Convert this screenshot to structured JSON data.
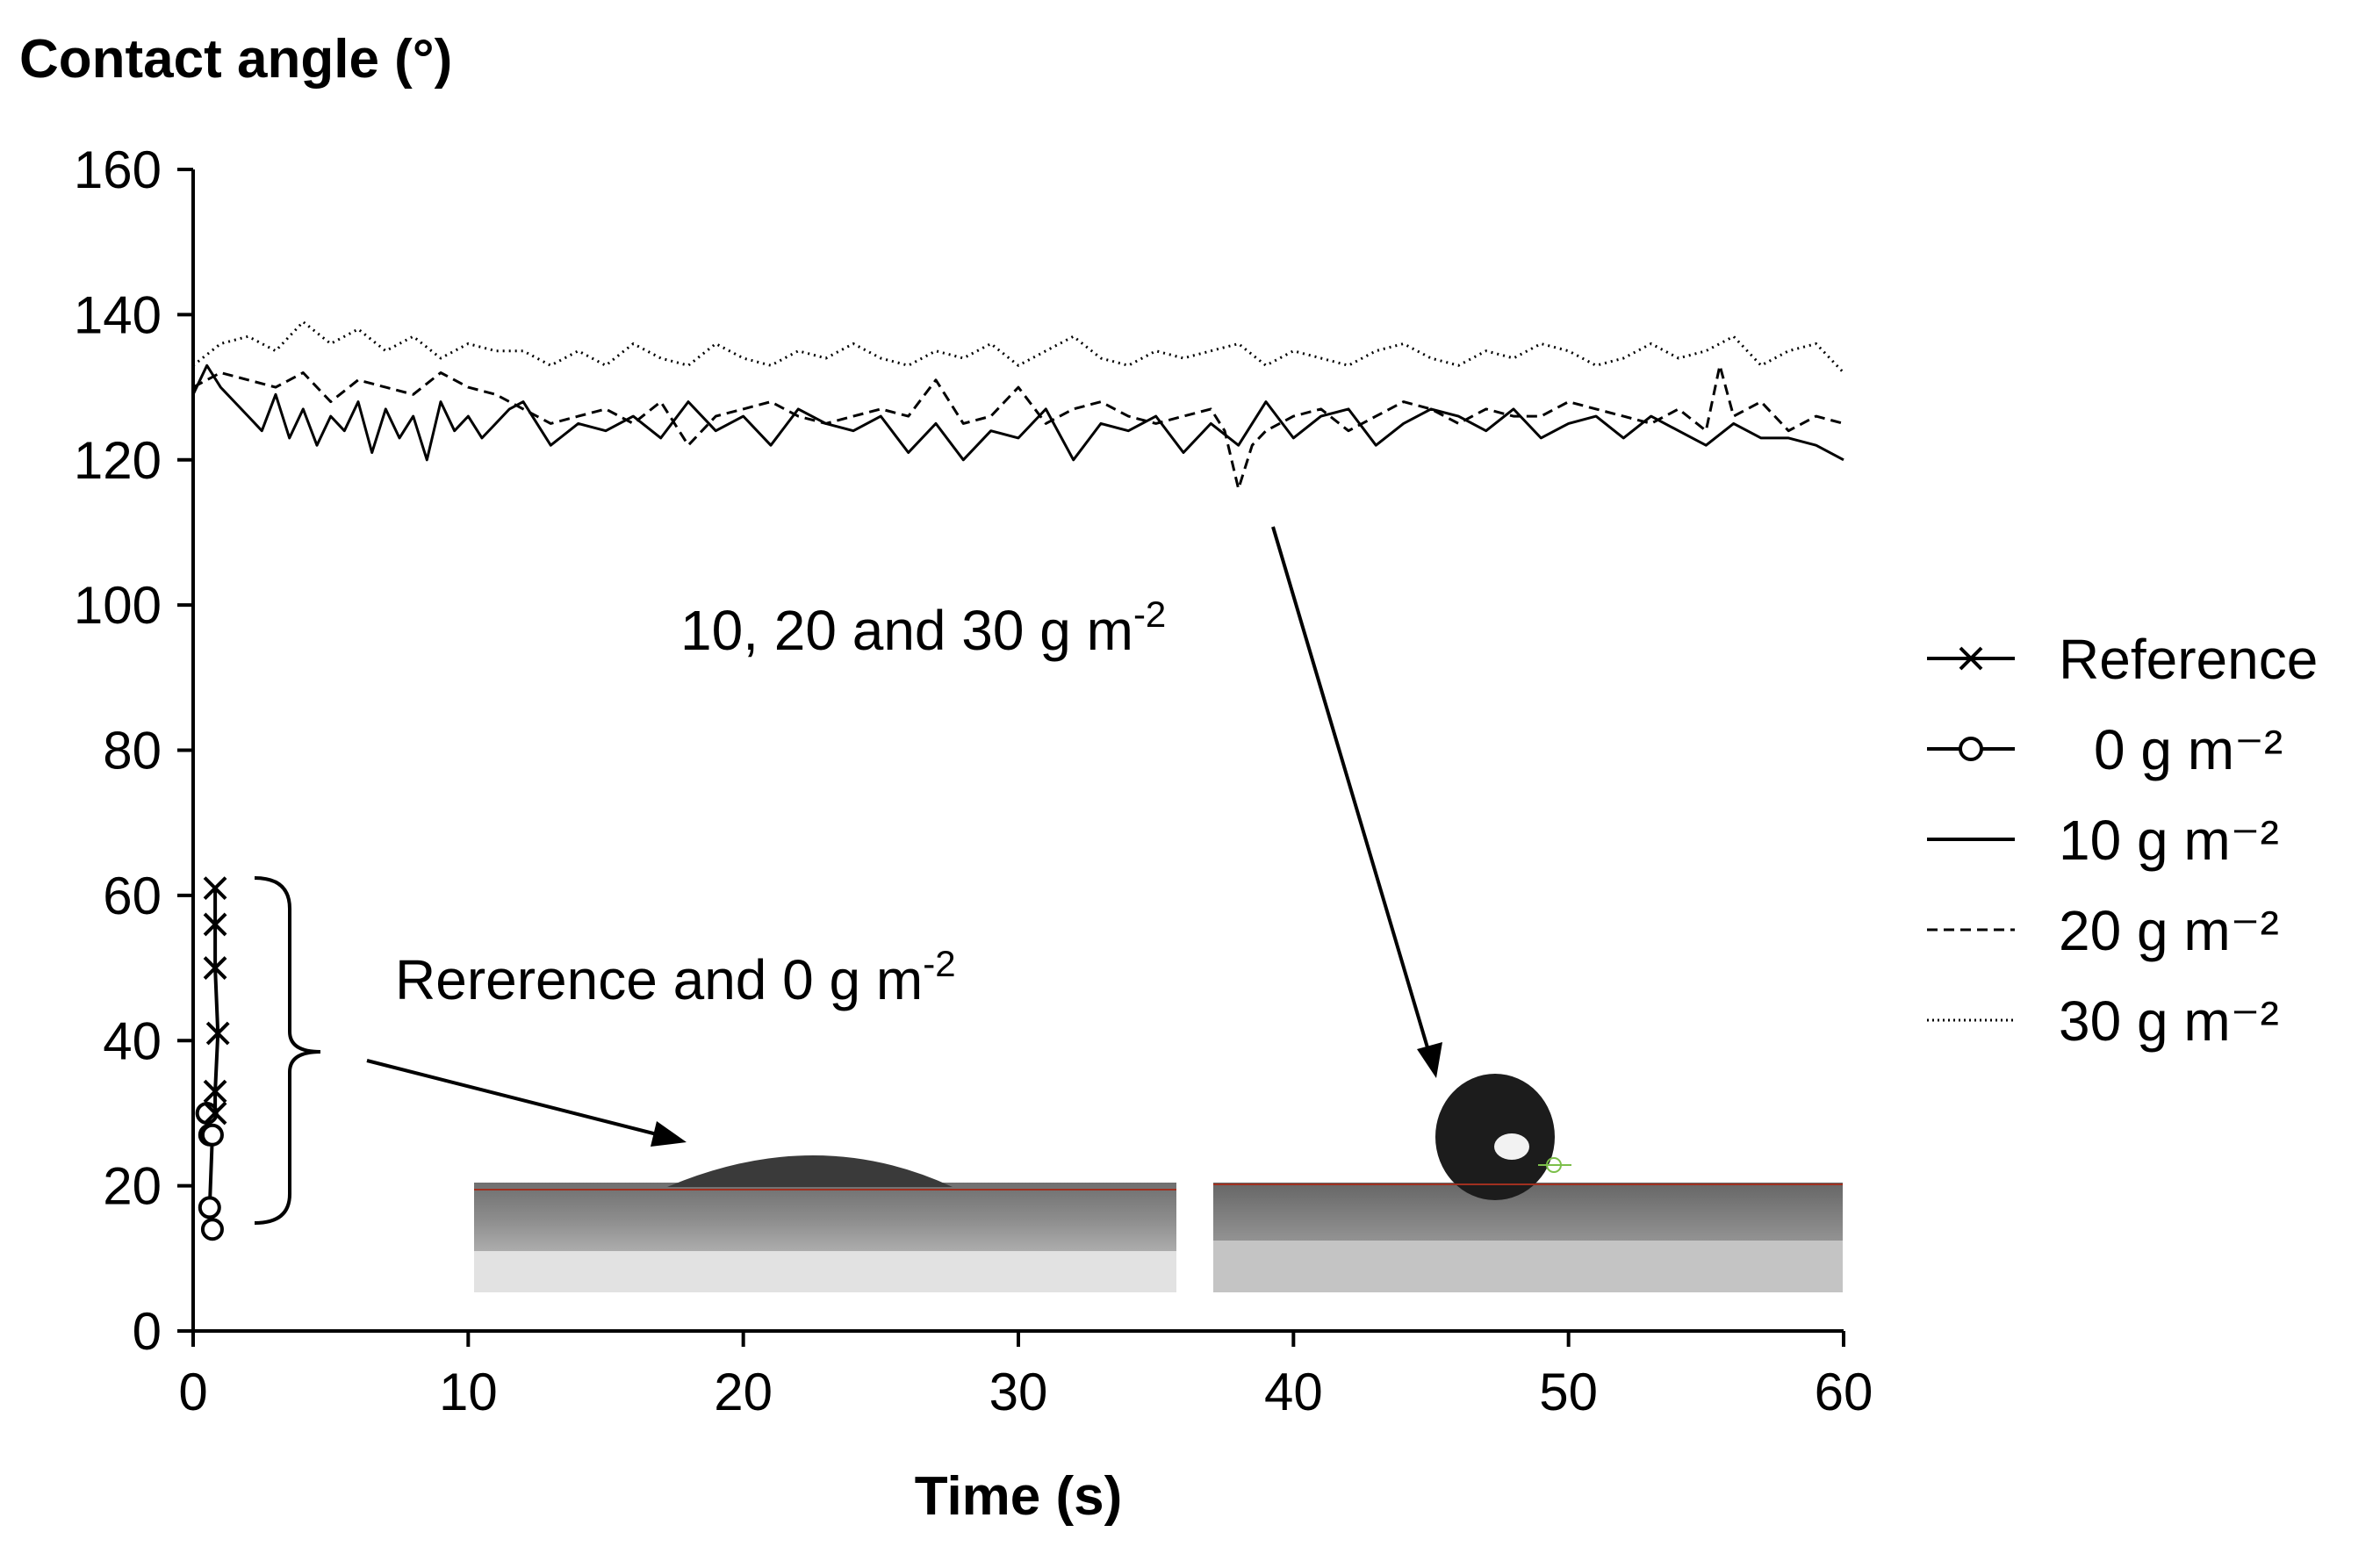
{
  "chart_data": {
    "type": "line",
    "title": "",
    "ylabel": "Contact angle (°)",
    "xlabel": "Time (s)",
    "xlim": [
      0,
      60
    ],
    "ylim": [
      0,
      160
    ],
    "x_ticks": [
      0,
      10,
      20,
      30,
      40,
      50,
      60
    ],
    "y_ticks": [
      0,
      20,
      40,
      60,
      80,
      100,
      120,
      140,
      160
    ],
    "grid": false,
    "legend_position": "right",
    "series": [
      {
        "name": "Reference",
        "style": "solid-cross",
        "x": [
          0.8,
          0.8,
          0.8,
          0.9,
          0.8,
          0.8
        ],
        "y": [
          61,
          56,
          50,
          41,
          33,
          30
        ]
      },
      {
        "name": "0 g m⁻²",
        "style": "solid-circle",
        "x": [
          0.5,
          0.6,
          0.7,
          0.6,
          0.7
        ],
        "y": [
          30,
          27,
          27,
          17,
          14
        ]
      },
      {
        "name": "10 g m⁻²",
        "style": "solid",
        "x": [
          0,
          0.5,
          1,
          1.5,
          2,
          2.5,
          3,
          3.5,
          4,
          4.5,
          5,
          5.5,
          6,
          6.5,
          7,
          7.5,
          8,
          8.5,
          9,
          9.5,
          10,
          10.5,
          11,
          11.5,
          12,
          13,
          14,
          15,
          16,
          17,
          18,
          19,
          20,
          21,
          22,
          23,
          24,
          25,
          26,
          27,
          28,
          29,
          30,
          31,
          32,
          33,
          34,
          35,
          36,
          37,
          38,
          39,
          40,
          41,
          42,
          43,
          44,
          45,
          46,
          47,
          48,
          49,
          50,
          51,
          52,
          53,
          54,
          55,
          56,
          57,
          58,
          59,
          60
        ],
        "y": [
          129,
          133,
          130,
          128,
          126,
          124,
          129,
          123,
          127,
          122,
          126,
          124,
          128,
          121,
          127,
          123,
          126,
          120,
          128,
          124,
          126,
          123,
          125,
          127,
          128,
          122,
          125,
          124,
          126,
          123,
          128,
          124,
          126,
          122,
          127,
          125,
          124,
          126,
          121,
          125,
          120,
          124,
          123,
          127,
          120,
          125,
          124,
          126,
          121,
          125,
          122,
          128,
          123,
          126,
          127,
          122,
          125,
          127,
          126,
          124,
          127,
          123,
          125,
          126,
          123,
          126,
          124,
          122,
          125,
          123,
          123,
          122,
          120
        ]
      },
      {
        "name": "20 g m⁻²",
        "style": "dashed",
        "x": [
          0,
          1,
          2,
          3,
          4,
          5,
          6,
          7,
          8,
          9,
          10,
          11,
          12,
          13,
          14,
          15,
          16,
          17,
          18,
          19,
          20,
          21,
          22,
          23,
          24,
          25,
          26,
          27,
          28,
          29,
          30,
          31,
          32,
          33,
          34,
          35,
          36,
          37,
          37.5,
          38,
          38.5,
          39,
          40,
          41,
          42,
          43,
          44,
          45,
          46,
          47,
          48,
          49,
          50,
          51,
          52,
          53,
          54,
          55,
          55.5,
          56,
          57,
          58,
          59,
          60
        ],
        "y": [
          130,
          132,
          131,
          130,
          132,
          128,
          131,
          130,
          129,
          132,
          130,
          129,
          127,
          125,
          126,
          127,
          125,
          128,
          122,
          126,
          127,
          128,
          126,
          125,
          126,
          127,
          126,
          131,
          125,
          126,
          130,
          125,
          127,
          128,
          126,
          125,
          126,
          127,
          124,
          116,
          122,
          124,
          126,
          127,
          124,
          126,
          128,
          127,
          125,
          127,
          126,
          126,
          128,
          127,
          126,
          125,
          127,
          124,
          133,
          126,
          128,
          124,
          126,
          125
        ]
      },
      {
        "name": "30 g m⁻²",
        "style": "dotted",
        "x": [
          0,
          1,
          2,
          3,
          4,
          5,
          6,
          7,
          8,
          9,
          10,
          11,
          12,
          13,
          14,
          15,
          16,
          17,
          18,
          19,
          20,
          21,
          22,
          23,
          24,
          25,
          26,
          27,
          28,
          29,
          30,
          31,
          32,
          33,
          34,
          35,
          36,
          37,
          38,
          39,
          40,
          41,
          42,
          43,
          44,
          45,
          46,
          47,
          48,
          49,
          50,
          51,
          52,
          53,
          54,
          55,
          56,
          57,
          58,
          59,
          60
        ],
        "y": [
          133,
          136,
          137,
          135,
          139,
          136,
          138,
          135,
          137,
          134,
          136,
          135,
          135,
          133,
          135,
          133,
          136,
          134,
          133,
          136,
          134,
          133,
          135,
          134,
          136,
          134,
          133,
          135,
          134,
          136,
          133,
          135,
          137,
          134,
          133,
          135,
          134,
          135,
          136,
          133,
          135,
          134,
          133,
          135,
          136,
          134,
          133,
          135,
          134,
          136,
          135,
          133,
          134,
          136,
          134,
          135,
          137,
          133,
          135,
          136,
          132
        ]
      }
    ],
    "annotations": [
      {
        "text": "10, 20 and 30 g m",
        "sup": "-2"
      },
      {
        "text": "Rererence and 0 g m",
        "sup": "-2"
      }
    ]
  }
}
